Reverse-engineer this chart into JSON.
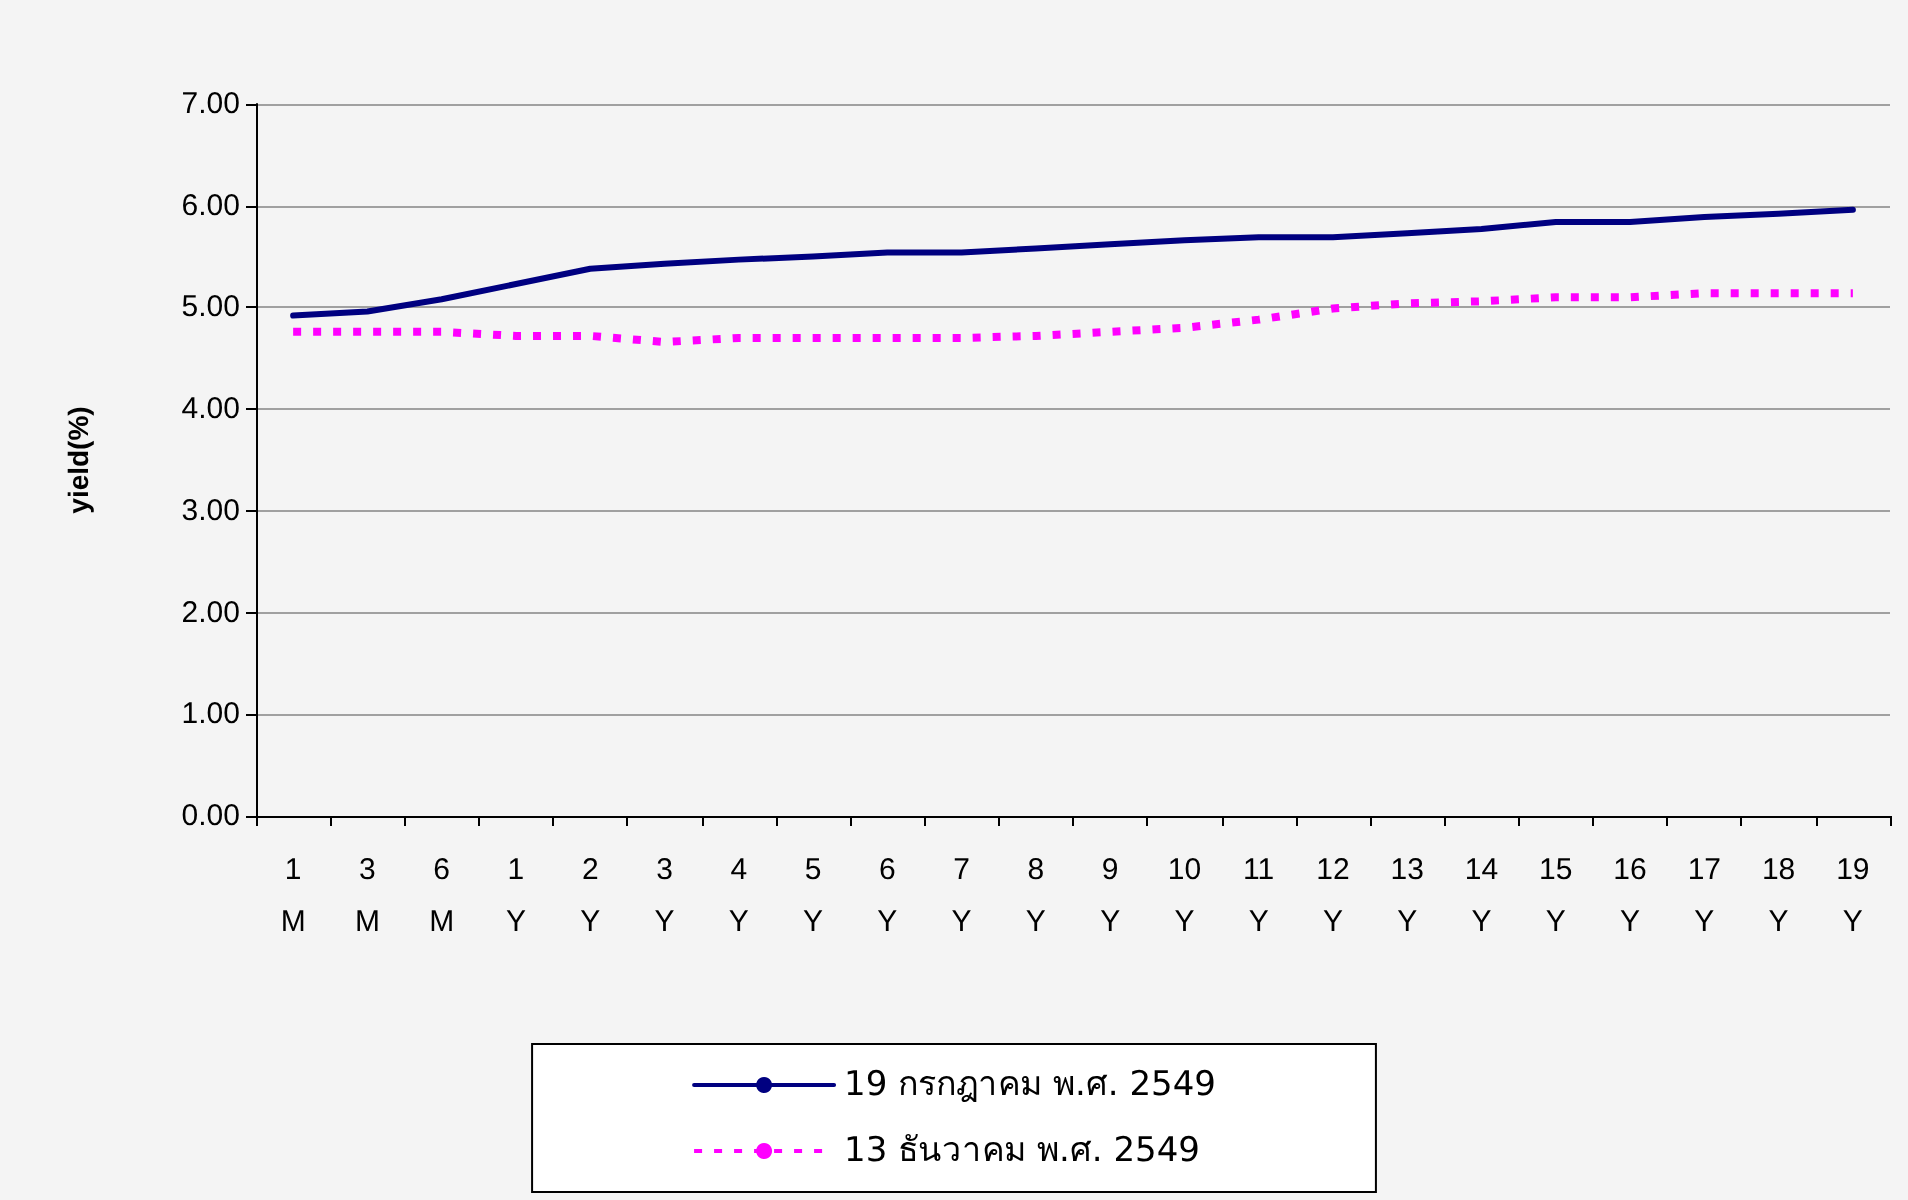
{
  "chart_data": {
    "type": "line",
    "ylabel": "yield(%)",
    "categories": [
      "1\nM",
      "3\nM",
      "6\nM",
      "1\nY",
      "2\nY",
      "3\nY",
      "4\nY",
      "5\nY",
      "6\nY",
      "7\nY",
      "8\nY",
      "9\nY",
      "10\nY",
      "11\nY",
      "12\nY",
      "13\nY",
      "14\nY",
      "15\nY",
      "16\nY",
      "17\nY",
      "18\nY",
      "19\nY"
    ],
    "series": [
      {
        "name": "19 กรกฎาคม พ.ศ. 2549",
        "color": "#000080",
        "line_style": "solid",
        "values": [
          4.92,
          4.96,
          5.08,
          5.23,
          5.38,
          5.43,
          5.47,
          5.5,
          5.54,
          5.54,
          5.58,
          5.62,
          5.66,
          5.69,
          5.69,
          5.73,
          5.77,
          5.84,
          5.84,
          5.89,
          5.92,
          5.96
        ]
      },
      {
        "name": "13 ธันวาคม พ.ศ. 2549",
        "color": "#ff00ff",
        "line_style": "dashed",
        "values": [
          4.76,
          4.76,
          4.76,
          4.72,
          4.72,
          4.66,
          4.7,
          4.7,
          4.7,
          4.7,
          4.72,
          4.76,
          4.8,
          4.88,
          4.99,
          5.04,
          5.06,
          5.1,
          5.1,
          5.14,
          5.14,
          5.14
        ]
      }
    ],
    "ylim": [
      0,
      7
    ],
    "yticks": [
      {
        "value": 0,
        "label": "0.00"
      },
      {
        "value": 1,
        "label": "1.00"
      },
      {
        "value": 2,
        "label": "2.00"
      },
      {
        "value": 3,
        "label": "3.00"
      },
      {
        "value": 4,
        "label": "4.00"
      },
      {
        "value": 5,
        "label": "5.00"
      },
      {
        "value": 6,
        "label": "6.00"
      },
      {
        "value": 7,
        "label": "7.00"
      }
    ],
    "grid": "y",
    "legend": "bottom",
    "marker": "none"
  }
}
